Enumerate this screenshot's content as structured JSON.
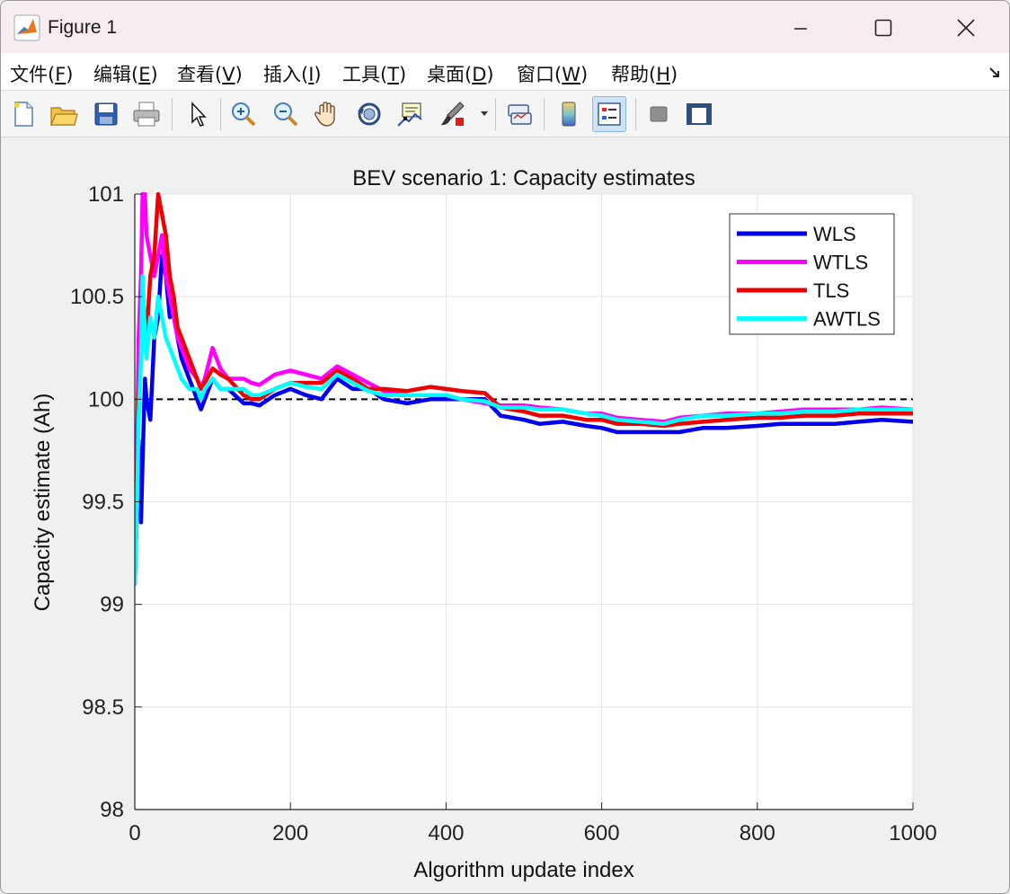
{
  "window": {
    "title": "Figure 1",
    "icon": "matlab-icon"
  },
  "menu": [
    {
      "label": "文件(",
      "key": "F",
      "end": ")"
    },
    {
      "label": "编辑(",
      "key": "E",
      "end": ")"
    },
    {
      "label": "查看(",
      "key": "V",
      "end": ")"
    },
    {
      "label": "插入(",
      "key": "I",
      "end": ")"
    },
    {
      "label": "工具(",
      "key": "T",
      "end": ")"
    },
    {
      "label": "桌面(",
      "key": "D",
      "end": ")"
    },
    {
      "label": "窗口(",
      "key": "W",
      "end": ")"
    },
    {
      "label": "帮助(",
      "key": "H",
      "end": ")"
    }
  ],
  "toolbar": [
    "new-file-icon",
    "open-folder-icon",
    "save-icon",
    "print-icon",
    "pointer-icon",
    "zoom-in-icon",
    "zoom-out-icon",
    "pan-hand-icon",
    "rotate-3d-icon",
    "data-cursor-icon",
    "brush-icon",
    "link-plot-icon",
    "colorbar-icon",
    "legend-icon",
    "hide-plot-tools-icon",
    "show-plot-tools-icon"
  ],
  "chart_data": {
    "type": "line",
    "title": "BEV scenario 1: Capacity estimates",
    "xlabel": "Algorithm update index",
    "ylabel": "Capacity estimate (Ah)",
    "xlim": [
      0,
      1000
    ],
    "ylim": [
      98,
      101
    ],
    "xticks": [
      "0",
      "200",
      "400",
      "600",
      "800",
      "1000"
    ],
    "yticks": [
      "98",
      "98.5",
      "99",
      "99.5",
      "100",
      "100.5",
      "101"
    ],
    "grid": true,
    "legend_position": "top-right",
    "reference_line": {
      "y": 100,
      "style": "dashed",
      "color": "#000000"
    },
    "series": [
      {
        "name": "WLS",
        "color": "#0000ee",
        "x": [
          0,
          3,
          5,
          8,
          10,
          13,
          15,
          20,
          25,
          30,
          35,
          40,
          45,
          50,
          55,
          60,
          70,
          80,
          85,
          90,
          100,
          110,
          120,
          140,
          150,
          160,
          180,
          200,
          220,
          240,
          260,
          280,
          300,
          320,
          350,
          380,
          400,
          420,
          450,
          470,
          500,
          520,
          550,
          580,
          600,
          620,
          650,
          680,
          700,
          730,
          760,
          800,
          830,
          860,
          900,
          930,
          960,
          1000
        ],
        "y": [
          99.1,
          99.5,
          99.8,
          99.4,
          99.7,
          100.1,
          100.0,
          99.9,
          100.3,
          100.4,
          100.7,
          100.6,
          100.4,
          100.5,
          100.3,
          100.2,
          100.1,
          100.0,
          99.95,
          100.0,
          100.1,
          100.05,
          100.05,
          99.98,
          99.98,
          99.97,
          100.02,
          100.05,
          100.02,
          100.0,
          100.1,
          100.05,
          100.05,
          100.0,
          99.98,
          100.0,
          100.0,
          100.0,
          100.0,
          99.92,
          99.9,
          99.88,
          99.89,
          99.87,
          99.86,
          99.84,
          99.84,
          99.84,
          99.84,
          99.86,
          99.86,
          99.87,
          99.88,
          99.88,
          99.88,
          99.89,
          99.9,
          99.89
        ]
      },
      {
        "name": "WTLS",
        "color": "#ff00ff",
        "x": [
          0,
          3,
          5,
          8,
          10,
          13,
          15,
          20,
          25,
          30,
          35,
          40,
          45,
          50,
          55,
          60,
          70,
          80,
          85,
          90,
          100,
          110,
          120,
          140,
          150,
          160,
          180,
          200,
          220,
          240,
          260,
          280,
          300,
          320,
          350,
          380,
          400,
          420,
          450,
          470,
          500,
          520,
          550,
          580,
          600,
          620,
          650,
          680,
          700,
          730,
          760,
          800,
          830,
          860,
          900,
          930,
          960,
          1000
        ],
        "y": [
          99.1,
          99.8,
          100.3,
          100.6,
          101.0,
          101.0,
          100.8,
          100.7,
          100.6,
          100.7,
          100.8,
          100.6,
          100.5,
          100.4,
          100.3,
          100.25,
          100.15,
          100.1,
          100.05,
          100.1,
          100.25,
          100.15,
          100.1,
          100.1,
          100.08,
          100.07,
          100.12,
          100.14,
          100.12,
          100.1,
          100.16,
          100.12,
          100.08,
          100.04,
          100.02,
          100.02,
          100.02,
          100.0,
          99.98,
          99.97,
          99.97,
          99.96,
          99.95,
          99.93,
          99.93,
          99.91,
          99.9,
          99.89,
          99.91,
          99.92,
          99.93,
          99.93,
          99.94,
          99.95,
          99.95,
          99.95,
          99.96,
          99.95
        ]
      },
      {
        "name": "TLS",
        "color": "#ee0000",
        "x": [
          0,
          3,
          5,
          8,
          10,
          13,
          15,
          20,
          25,
          30,
          35,
          40,
          45,
          50,
          55,
          60,
          70,
          80,
          85,
          90,
          100,
          110,
          120,
          140,
          150,
          160,
          180,
          200,
          220,
          240,
          260,
          280,
          300,
          320,
          350,
          380,
          400,
          420,
          450,
          470,
          500,
          520,
          550,
          580,
          600,
          620,
          650,
          680,
          700,
          730,
          760,
          800,
          830,
          860,
          900,
          930,
          960,
          1000
        ],
        "y": [
          99.2,
          99.6,
          100.0,
          100.2,
          100.5,
          100.4,
          100.3,
          100.6,
          100.7,
          101.0,
          100.9,
          100.8,
          100.6,
          100.5,
          100.35,
          100.3,
          100.2,
          100.1,
          100.05,
          100.08,
          100.15,
          100.12,
          100.1,
          100.02,
          100.0,
          100.0,
          100.05,
          100.08,
          100.08,
          100.08,
          100.14,
          100.1,
          100.05,
          100.05,
          100.04,
          100.06,
          100.05,
          100.04,
          100.03,
          99.96,
          99.94,
          99.92,
          99.92,
          99.9,
          99.9,
          99.88,
          99.88,
          99.87,
          99.88,
          99.89,
          99.9,
          99.91,
          99.91,
          99.92,
          99.92,
          99.93,
          99.93,
          99.93
        ]
      },
      {
        "name": "AWTLS",
        "color": "#00ffff",
        "x": [
          0,
          3,
          5,
          8,
          10,
          13,
          15,
          20,
          25,
          30,
          35,
          40,
          45,
          50,
          55,
          60,
          70,
          80,
          85,
          90,
          100,
          110,
          120,
          140,
          150,
          160,
          180,
          200,
          220,
          240,
          260,
          280,
          300,
          320,
          350,
          380,
          400,
          420,
          450,
          470,
          500,
          520,
          550,
          580,
          600,
          620,
          650,
          680,
          700,
          730,
          760,
          800,
          830,
          860,
          900,
          930,
          960,
          1000
        ],
        "y": [
          99.1,
          99.5,
          99.9,
          100.2,
          100.6,
          100.3,
          100.2,
          100.4,
          100.3,
          100.5,
          100.4,
          100.3,
          100.25,
          100.2,
          100.15,
          100.1,
          100.05,
          100.05,
          100.0,
          100.05,
          100.1,
          100.05,
          100.05,
          100.05,
          100.02,
          100.02,
          100.05,
          100.08,
          100.06,
          100.05,
          100.12,
          100.08,
          100.04,
          100.02,
          100.02,
          100.02,
          100.02,
          100.0,
          99.99,
          99.96,
          99.96,
          99.95,
          99.95,
          99.93,
          99.92,
          99.9,
          99.89,
          99.88,
          99.9,
          99.92,
          99.92,
          99.93,
          99.93,
          99.94,
          99.94,
          99.95,
          99.95,
          99.95
        ]
      }
    ]
  }
}
